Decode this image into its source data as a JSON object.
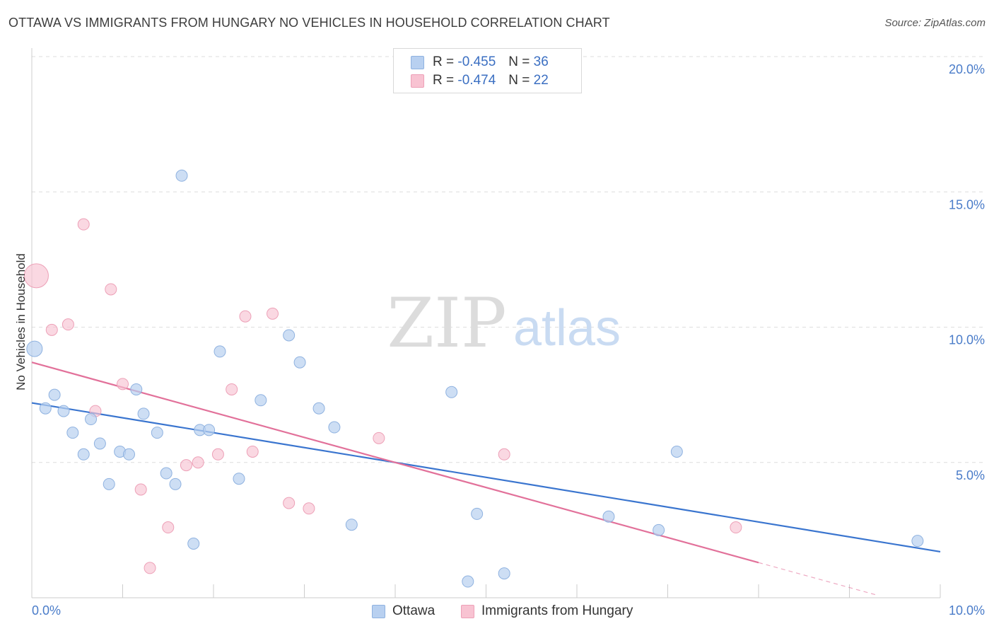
{
  "header": {
    "title": "OTTAWA VS IMMIGRANTS FROM HUNGARY NO VEHICLES IN HOUSEHOLD CORRELATION CHART",
    "source": "Source: ZipAtlas.com"
  },
  "watermark": {
    "zip": "ZIP",
    "atlas": "atlas"
  },
  "legend": {
    "rows": [
      {
        "r_label": "R =",
        "r_value": "-0.455",
        "n_label": "N =",
        "n_value": "36"
      },
      {
        "r_label": "R =",
        "r_value": "-0.474",
        "n_label": "N =",
        "n_value": "22"
      }
    ]
  },
  "colors": {
    "ottawa_fill": "#b8d0f0",
    "ottawa_stroke": "#8fb2e0",
    "ottawa_line": "#3a75cf",
    "hungary_fill": "#f8c3d2",
    "hungary_stroke": "#eda0b7",
    "hungary_line": "#e2719a",
    "tick_text": "#4a7cc9",
    "grid": "#dedede"
  },
  "chart_data": {
    "type": "scatter",
    "title": "OTTAWA VS IMMIGRANTS FROM HUNGARY NO VEHICLES IN HOUSEHOLD CORRELATION CHART",
    "xlabel": "",
    "ylabel": "No Vehicles in Household",
    "xlim": [
      0,
      10
    ],
    "ylim": [
      0,
      20
    ],
    "x_tick_labels": [
      "0.0%",
      "10.0%"
    ],
    "y_ticks": [
      5,
      10,
      15,
      20
    ],
    "y_tick_labels": [
      "5.0%",
      "10.0%",
      "15.0%",
      "20.0%"
    ],
    "grid": true,
    "legend_position": "top-center",
    "series": [
      {
        "name": "Ottawa",
        "r": -0.455,
        "n": 36,
        "trend": {
          "x": [
            0,
            10
          ],
          "y": [
            7.2,
            1.7
          ]
        },
        "points": [
          {
            "x": 0.03,
            "y": 9.2,
            "big": true
          },
          {
            "x": 0.15,
            "y": 7.0
          },
          {
            "x": 0.25,
            "y": 7.5
          },
          {
            "x": 0.35,
            "y": 6.9
          },
          {
            "x": 0.45,
            "y": 6.1
          },
          {
            "x": 0.57,
            "y": 5.3
          },
          {
            "x": 0.65,
            "y": 6.6
          },
          {
            "x": 0.75,
            "y": 5.7
          },
          {
            "x": 0.85,
            "y": 4.2
          },
          {
            "x": 0.97,
            "y": 5.4
          },
          {
            "x": 1.07,
            "y": 5.3
          },
          {
            "x": 1.15,
            "y": 7.7
          },
          {
            "x": 1.23,
            "y": 6.8
          },
          {
            "x": 1.38,
            "y": 6.1
          },
          {
            "x": 1.48,
            "y": 4.6
          },
          {
            "x": 1.58,
            "y": 4.2
          },
          {
            "x": 1.65,
            "y": 15.6
          },
          {
            "x": 1.78,
            "y": 2.0
          },
          {
            "x": 1.85,
            "y": 6.2
          },
          {
            "x": 1.95,
            "y": 6.2
          },
          {
            "x": 2.07,
            "y": 9.1
          },
          {
            "x": 2.28,
            "y": 4.4
          },
          {
            "x": 2.52,
            "y": 7.3
          },
          {
            "x": 2.83,
            "y": 9.7
          },
          {
            "x": 2.95,
            "y": 8.7
          },
          {
            "x": 3.16,
            "y": 7.0
          },
          {
            "x": 3.33,
            "y": 6.3
          },
          {
            "x": 3.52,
            "y": 2.7
          },
          {
            "x": 4.62,
            "y": 7.6
          },
          {
            "x": 4.8,
            "y": 0.6
          },
          {
            "x": 4.9,
            "y": 3.1
          },
          {
            "x": 5.2,
            "y": 0.9
          },
          {
            "x": 6.35,
            "y": 3.0
          },
          {
            "x": 6.9,
            "y": 2.5
          },
          {
            "x": 7.1,
            "y": 5.4
          },
          {
            "x": 9.75,
            "y": 2.1
          }
        ]
      },
      {
        "name": "Immigrants from Hungary",
        "r": -0.474,
        "n": 22,
        "trend": {
          "x": [
            0,
            8.0
          ],
          "y": [
            8.7,
            1.3
          ]
        },
        "trend_dashed": {
          "x": [
            8.0,
            9.3
          ],
          "y": [
            1.3,
            0.1
          ]
        },
        "points": [
          {
            "x": 0.05,
            "y": 11.9,
            "big": true
          },
          {
            "x": 0.22,
            "y": 9.9
          },
          {
            "x": 0.4,
            "y": 10.1
          },
          {
            "x": 0.57,
            "y": 13.8
          },
          {
            "x": 0.7,
            "y": 6.9
          },
          {
            "x": 0.87,
            "y": 11.4
          },
          {
            "x": 1.0,
            "y": 7.9
          },
          {
            "x": 1.2,
            "y": 4.0
          },
          {
            "x": 1.3,
            "y": 1.1
          },
          {
            "x": 1.5,
            "y": 2.6
          },
          {
            "x": 1.7,
            "y": 4.9
          },
          {
            "x": 1.83,
            "y": 5.0
          },
          {
            "x": 2.05,
            "y": 5.3
          },
          {
            "x": 2.2,
            "y": 7.7
          },
          {
            "x": 2.35,
            "y": 10.4
          },
          {
            "x": 2.43,
            "y": 5.4
          },
          {
            "x": 2.65,
            "y": 10.5
          },
          {
            "x": 2.83,
            "y": 3.5
          },
          {
            "x": 3.05,
            "y": 3.3
          },
          {
            "x": 3.82,
            "y": 5.9
          },
          {
            "x": 5.2,
            "y": 5.3
          },
          {
            "x": 7.75,
            "y": 2.6
          }
        ]
      }
    ]
  }
}
